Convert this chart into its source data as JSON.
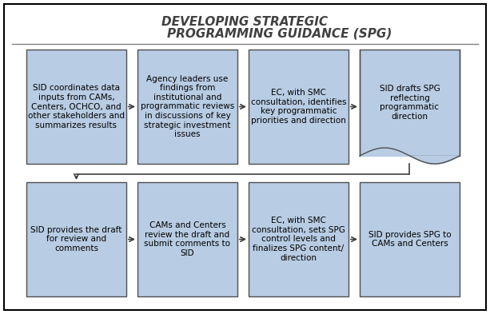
{
  "title_line1": "DEVELOPING STRATEGIC",
  "title_line2": "PROGRAMMING GUIDANCE (SPG)",
  "bg_color": "#ffffff",
  "outer_border_color": "#000000",
  "box_fill_color": "#b8cce4",
  "box_edge_color": "#4f4f4f",
  "text_color": "#000000",
  "title_color": "#404040",
  "arrow_color": "#404040",
  "font_size": 7.5,
  "title_font_size": 11,
  "row1_boxes": [
    "SID coordinates data\ninputs from CAMs,\nCenters, OCHCO, and\nother stakeholders and\nsummarizes results",
    "Agency leaders use\nfindings from\ninstitutional and\nprogrammatic reviews\nin discussions of key\nstrategic investment\nissues",
    "EC, with SMC\nconsultation, identifies\nkey programmatic\npriorities and direction",
    "SID drafts SPG\nreflecting\nprogrammatic\ndirection"
  ],
  "row2_boxes": [
    "SID provides the draft\nfor review and\ncomments",
    "CAMs and Centers\nreview the draft and\nsubmit comments to\nSID",
    "EC, with SMC\nconsultation, sets SPG\ncontrol levels and\nfinalizes SPG content/\ndirection",
    "SID provides SPG to\nCAMs and Centers"
  ]
}
